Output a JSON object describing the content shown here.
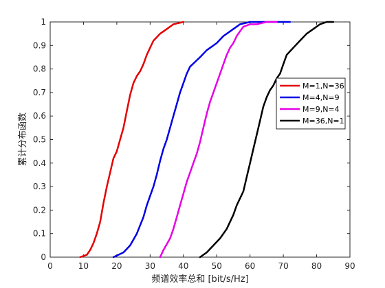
{
  "chart_data": {
    "type": "line",
    "title": "",
    "xlabel": "频谱效率总和 [bit/s/Hz]",
    "ylabel": "累计分布函数",
    "xlim": [
      0,
      90
    ],
    "ylim": [
      0,
      1
    ],
    "xticks": [
      0,
      10,
      20,
      30,
      40,
      50,
      60,
      70,
      80,
      90
    ],
    "yticks": [
      0,
      0.1,
      0.2,
      0.3,
      0.4,
      0.5,
      0.6,
      0.7,
      0.8,
      0.9,
      1
    ],
    "ytick_labels": [
      "0",
      "0.1",
      "0.2",
      "0.3",
      "0.4",
      "0.5",
      "0.6",
      "0.7",
      "0.8",
      "0.9",
      "1"
    ],
    "grid": false,
    "legend_position": "right",
    "series": [
      {
        "name": "M=1,N=36",
        "color": "#e60000",
        "x": [
          9,
          11,
          12,
          13,
          14,
          15,
          16,
          17,
          18,
          19,
          20,
          21,
          22,
          23,
          24,
          25,
          26,
          27,
          28,
          29,
          30,
          31,
          33,
          35,
          37,
          40
        ],
        "y": [
          0,
          0.01,
          0.03,
          0.06,
          0.1,
          0.15,
          0.23,
          0.3,
          0.36,
          0.42,
          0.45,
          0.5,
          0.55,
          0.62,
          0.69,
          0.74,
          0.77,
          0.79,
          0.82,
          0.86,
          0.89,
          0.92,
          0.95,
          0.97,
          0.99,
          1
        ]
      },
      {
        "name": "M=4,N=9",
        "color": "#0000e6",
        "x": [
          19,
          22,
          24,
          26,
          28,
          29,
          30,
          31,
          32,
          33,
          34,
          35,
          36,
          37,
          38,
          39,
          40,
          41,
          42,
          45,
          47,
          50,
          52,
          55,
          57,
          60,
          65,
          72
        ],
        "y": [
          0,
          0.02,
          0.05,
          0.1,
          0.17,
          0.22,
          0.26,
          0.3,
          0.35,
          0.41,
          0.46,
          0.5,
          0.55,
          0.6,
          0.65,
          0.7,
          0.74,
          0.78,
          0.81,
          0.85,
          0.88,
          0.91,
          0.94,
          0.97,
          0.99,
          1,
          1,
          1
        ]
      },
      {
        "name": "M=9,N=4",
        "color": "#e600e6",
        "x": [
          33,
          34,
          36,
          37,
          38,
          39,
          40,
          41,
          42,
          43,
          44,
          45,
          46,
          47,
          48,
          49,
          50,
          51,
          52,
          53,
          54,
          55,
          56,
          57,
          58,
          60,
          62,
          65,
          68
        ],
        "y": [
          0,
          0.03,
          0.08,
          0.12,
          0.17,
          0.22,
          0.27,
          0.32,
          0.36,
          0.4,
          0.44,
          0.49,
          0.55,
          0.61,
          0.66,
          0.7,
          0.74,
          0.78,
          0.82,
          0.86,
          0.89,
          0.91,
          0.94,
          0.96,
          0.98,
          0.99,
          0.99,
          1,
          1
        ]
      },
      {
        "name": "M=36,N=1",
        "color": "#000000",
        "x": [
          45,
          47,
          49,
          51,
          53,
          55,
          56,
          58,
          59,
          60,
          61,
          62,
          63,
          64,
          65,
          66,
          67,
          68,
          69,
          70,
          71,
          73,
          75,
          77,
          79,
          81,
          83,
          85
        ],
        "y": [
          0,
          0.02,
          0.05,
          0.08,
          0.12,
          0.18,
          0.22,
          0.28,
          0.34,
          0.4,
          0.46,
          0.52,
          0.58,
          0.64,
          0.68,
          0.71,
          0.73,
          0.76,
          0.78,
          0.82,
          0.86,
          0.89,
          0.92,
          0.95,
          0.97,
          0.99,
          1,
          1
        ]
      }
    ]
  }
}
